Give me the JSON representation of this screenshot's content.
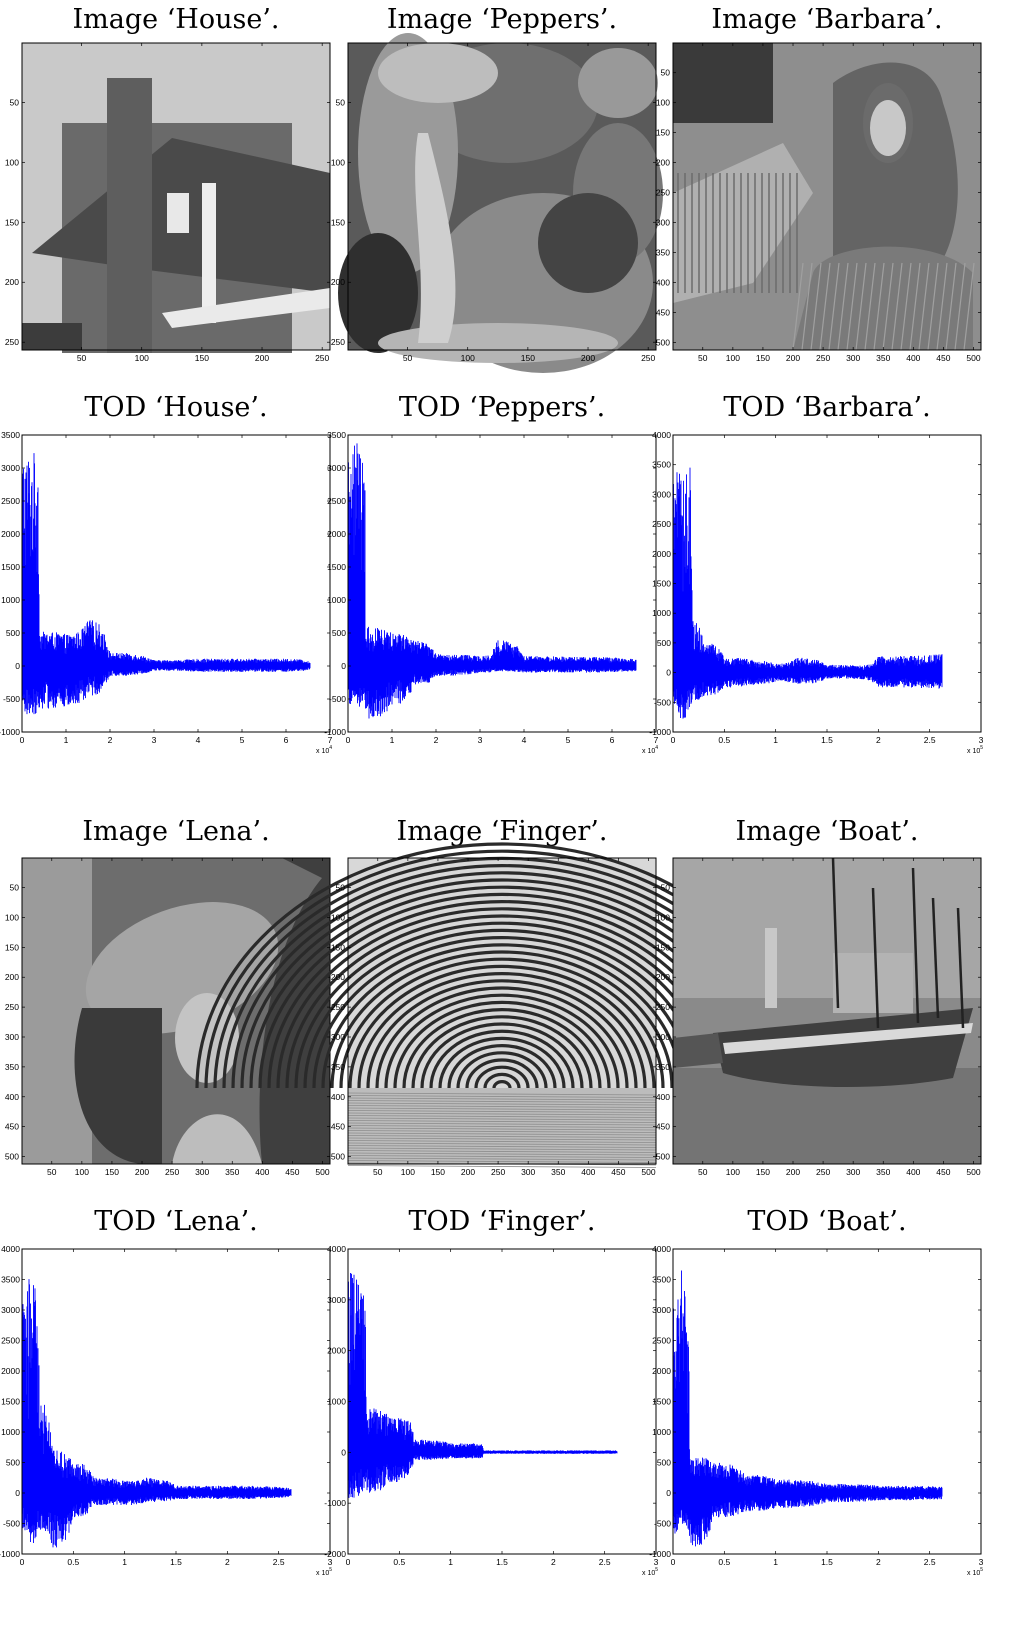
{
  "figure": {
    "images": [
      {
        "title": "Image ‘House’.",
        "xticks": [
          "50",
          "100",
          "150",
          "200",
          "250"
        ],
        "yticks": [
          "50",
          "100",
          "150",
          "200",
          "250"
        ],
        "size": 256,
        "tone": "house"
      },
      {
        "title": "Image ‘Peppers’.",
        "xticks": [
          "50",
          "100",
          "150",
          "200",
          "250"
        ],
        "yticks": [
          "50",
          "100",
          "150",
          "200",
          "250"
        ],
        "size": 256,
        "tone": "peppers"
      },
      {
        "title": "Image ‘Barbara’.",
        "xticks": [
          "50",
          "100",
          "150",
          "200",
          "250",
          "300",
          "350",
          "400",
          "450",
          "500"
        ],
        "yticks": [
          "50",
          "100",
          "150",
          "200",
          "250",
          "300",
          "350",
          "400",
          "450",
          "500"
        ],
        "size": 512,
        "tone": "barbara"
      },
      {
        "title": "Image ‘Lena’.",
        "xticks": [
          "50",
          "100",
          "150",
          "200",
          "250",
          "300",
          "350",
          "400",
          "450",
          "500"
        ],
        "yticks": [
          "50",
          "100",
          "150",
          "200",
          "250",
          "300",
          "350",
          "400",
          "450",
          "500"
        ],
        "size": 512,
        "tone": "lena"
      },
      {
        "title": "Image ‘Finger’.",
        "xticks": [
          "50",
          "100",
          "150",
          "200",
          "250",
          "300",
          "350",
          "400",
          "450",
          "500"
        ],
        "yticks": [
          "50",
          "100",
          "150",
          "200",
          "250",
          "300",
          "350",
          "400",
          "450",
          "500"
        ],
        "size": 512,
        "tone": "finger"
      },
      {
        "title": "Image ‘Boat’.",
        "xticks": [
          "50",
          "100",
          "150",
          "200",
          "250",
          "300",
          "350",
          "400",
          "450",
          "500"
        ],
        "yticks": [
          "50",
          "100",
          "150",
          "200",
          "250",
          "300",
          "350",
          "400",
          "450",
          "500"
        ],
        "size": 512,
        "tone": "boat"
      }
    ]
  },
  "chart_data": [
    {
      "type": "line",
      "title": "TOD ‘House’.",
      "color": "#0000ff",
      "xlim": [
        0,
        70000
      ],
      "ylim": [
        -1000,
        3500
      ],
      "xticks": [
        "0",
        "1",
        "2",
        "3",
        "4",
        "5",
        "6",
        "7"
      ],
      "x_multiplier": "x 10",
      "x_multiplier_exp": "4",
      "yticks": [
        "-1000",
        "-500",
        "0",
        "500",
        "1000",
        "1500",
        "2000",
        "2500",
        "3000",
        "3500"
      ],
      "n_points": 65536,
      "envelope": [
        {
          "x": 0,
          "hi": 3250,
          "lo": -750
        },
        {
          "x": 3800,
          "hi": 3250,
          "lo": -700
        },
        {
          "x": 3900,
          "hi": 520,
          "lo": -650
        },
        {
          "x": 10000,
          "hi": 480,
          "lo": -620
        },
        {
          "x": 15000,
          "hi": 700,
          "lo": -450
        },
        {
          "x": 20000,
          "hi": 200,
          "lo": -150
        },
        {
          "x": 30000,
          "hi": 90,
          "lo": -70
        },
        {
          "x": 40000,
          "hi": 110,
          "lo": -90
        },
        {
          "x": 50000,
          "hi": 110,
          "lo": -90
        },
        {
          "x": 60000,
          "hi": 110,
          "lo": -90
        },
        {
          "x": 65536,
          "hi": 60,
          "lo": -50
        }
      ]
    },
    {
      "type": "line",
      "title": "TOD ‘Peppers’.",
      "color": "#0000ff",
      "xlim": [
        0,
        70000
      ],
      "ylim": [
        -1000,
        3500
      ],
      "xticks": [
        "0",
        "1",
        "2",
        "3",
        "4",
        "5",
        "6",
        "7"
      ],
      "x_multiplier": "x 10",
      "x_multiplier_exp": "4",
      "yticks": [
        "-1000",
        "-500",
        "0",
        "500",
        "1000",
        "1500",
        "2000",
        "2500",
        "3000",
        "3500"
      ],
      "n_points": 65536,
      "envelope": [
        {
          "x": 0,
          "hi": 3450,
          "lo": -600
        },
        {
          "x": 3800,
          "hi": 3400,
          "lo": -650
        },
        {
          "x": 3900,
          "hi": 600,
          "lo": -800
        },
        {
          "x": 10000,
          "hi": 500,
          "lo": -600
        },
        {
          "x": 15000,
          "hi": 380,
          "lo": -300
        },
        {
          "x": 20000,
          "hi": 180,
          "lo": -150
        },
        {
          "x": 30000,
          "hi": 150,
          "lo": -100
        },
        {
          "x": 34000,
          "hi": 400,
          "lo": -80
        },
        {
          "x": 40000,
          "hi": 150,
          "lo": -100
        },
        {
          "x": 50000,
          "hi": 140,
          "lo": -100
        },
        {
          "x": 65536,
          "hi": 100,
          "lo": -80
        }
      ]
    },
    {
      "type": "line",
      "title": "TOD ‘Barbara’.",
      "color": "#0000ff",
      "xlim": [
        0,
        300000
      ],
      "ylim": [
        -1000,
        4000
      ],
      "xticks": [
        "0",
        "0.5",
        "1",
        "1.5",
        "2",
        "2.5",
        "3"
      ],
      "x_multiplier": "x 10",
      "x_multiplier_exp": "5",
      "yticks": [
        "-1000",
        "-500",
        "0",
        "500",
        "1000",
        "1500",
        "2000",
        "2500",
        "3000",
        "3500",
        "4000"
      ],
      "n_points": 262144,
      "envelope": [
        {
          "x": 0,
          "hi": 3500,
          "lo": -700
        },
        {
          "x": 8000,
          "hi": 3300,
          "lo": -800
        },
        {
          "x": 15000,
          "hi": 3700,
          "lo": -600
        },
        {
          "x": 19000,
          "hi": 900,
          "lo": -500
        },
        {
          "x": 30000,
          "hi": 500,
          "lo": -400
        },
        {
          "x": 50000,
          "hi": 250,
          "lo": -250
        },
        {
          "x": 80000,
          "hi": 200,
          "lo": -200
        },
        {
          "x": 100000,
          "hi": 150,
          "lo": -150
        },
        {
          "x": 120000,
          "hi": 250,
          "lo": -200
        },
        {
          "x": 150000,
          "hi": 130,
          "lo": -100
        },
        {
          "x": 180000,
          "hi": 120,
          "lo": -110
        },
        {
          "x": 200000,
          "hi": 280,
          "lo": -250
        },
        {
          "x": 262144,
          "hi": 320,
          "lo": -280
        }
      ]
    },
    {
      "type": "line",
      "title": "TOD ‘Lena’.",
      "color": "#0000ff",
      "xlim": [
        0,
        300000
      ],
      "ylim": [
        -1000,
        4000
      ],
      "xticks": [
        "0",
        "0.5",
        "1",
        "1.5",
        "2",
        "2.5",
        "3"
      ],
      "x_multiplier": "x 10",
      "x_multiplier_exp": "5",
      "yticks": [
        "-1000",
        "-500",
        "0",
        "500",
        "1000",
        "1500",
        "2000",
        "2500",
        "3000",
        "3500",
        "4000"
      ],
      "n_points": 262144,
      "envelope": [
        {
          "x": 0,
          "hi": 3200,
          "lo": -600
        },
        {
          "x": 8000,
          "hi": 3700,
          "lo": -900
        },
        {
          "x": 14000,
          "hi": 3300,
          "lo": -700
        },
        {
          "x": 17000,
          "hi": 1500,
          "lo": -600
        },
        {
          "x": 30000,
          "hi": 700,
          "lo": -900
        },
        {
          "x": 50000,
          "hi": 500,
          "lo": -400
        },
        {
          "x": 70000,
          "hi": 250,
          "lo": -200
        },
        {
          "x": 100000,
          "hi": 200,
          "lo": -200
        },
        {
          "x": 120000,
          "hi": 250,
          "lo": -150
        },
        {
          "x": 150000,
          "hi": 120,
          "lo": -100
        },
        {
          "x": 200000,
          "hi": 120,
          "lo": -100
        },
        {
          "x": 262144,
          "hi": 80,
          "lo": -60
        }
      ]
    },
    {
      "type": "line",
      "title": "TOD ‘Finger’.",
      "color": "#0000ff",
      "xlim": [
        0,
        300000
      ],
      "ylim": [
        -2000,
        4000
      ],
      "xticks": [
        "0",
        "0.5",
        "1",
        "1.5",
        "2",
        "2.5",
        "3"
      ],
      "x_multiplier": "x 10",
      "x_multiplier_exp": "5",
      "yticks": [
        "-2000",
        "-1000",
        "0",
        "1000",
        "2000",
        "3000",
        "4000"
      ],
      "n_points": 262144,
      "envelope": [
        {
          "x": 0,
          "hi": 3600,
          "lo": -1000
        },
        {
          "x": 8000,
          "hi": 3700,
          "lo": -900
        },
        {
          "x": 15000,
          "hi": 3300,
          "lo": -700
        },
        {
          "x": 18000,
          "hi": 900,
          "lo": -800
        },
        {
          "x": 40000,
          "hi": 700,
          "lo": -600
        },
        {
          "x": 60000,
          "hi": 600,
          "lo": -400
        },
        {
          "x": 64000,
          "hi": 250,
          "lo": -150
        },
        {
          "x": 100000,
          "hi": 180,
          "lo": -120
        },
        {
          "x": 130000,
          "hi": 170,
          "lo": -120
        },
        {
          "x": 132000,
          "hi": 40,
          "lo": -30
        },
        {
          "x": 262144,
          "hi": 40,
          "lo": -30
        }
      ]
    },
    {
      "type": "line",
      "title": "TOD ‘Boat’.",
      "color": "#0000ff",
      "xlim": [
        0,
        300000
      ],
      "ylim": [
        -1000,
        4000
      ],
      "xticks": [
        "0",
        "0.5",
        "1",
        "1.5",
        "2",
        "2.5",
        "3"
      ],
      "x_multiplier": "x 10",
      "x_multiplier_exp": "5",
      "yticks": [
        "-1000",
        "-500",
        "0",
        "500",
        "1000",
        "1500",
        "2000",
        "2500",
        "3000",
        "3500",
        "4000"
      ],
      "n_points": 262144,
      "envelope": [
        {
          "x": 0,
          "hi": 3200,
          "lo": -700
        },
        {
          "x": 6000,
          "hi": 3700,
          "lo": -500
        },
        {
          "x": 15000,
          "hi": 2800,
          "lo": -600
        },
        {
          "x": 16500,
          "hi": 600,
          "lo": -900
        },
        {
          "x": 40000,
          "hi": 500,
          "lo": -400
        },
        {
          "x": 70000,
          "hi": 300,
          "lo": -300
        },
        {
          "x": 100000,
          "hi": 220,
          "lo": -250
        },
        {
          "x": 150000,
          "hi": 150,
          "lo": -150
        },
        {
          "x": 200000,
          "hi": 120,
          "lo": -120
        },
        {
          "x": 262144,
          "hi": 100,
          "lo": -100
        }
      ]
    }
  ]
}
